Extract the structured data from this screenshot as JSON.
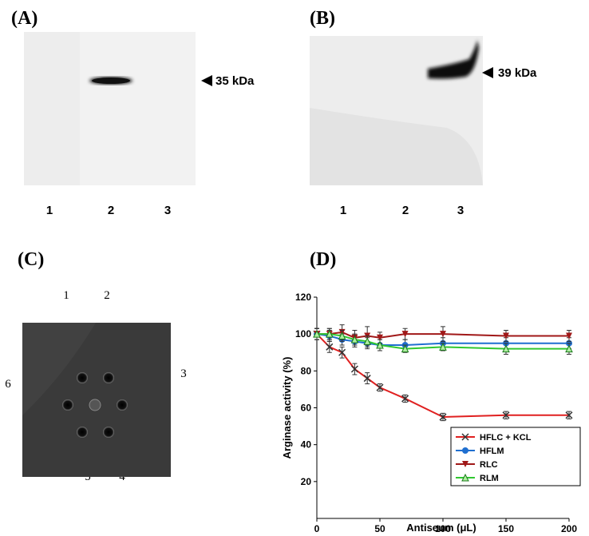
{
  "panels": {
    "a": {
      "label": "(A)",
      "marker": "35 kDa",
      "lanes": [
        "1",
        "2",
        "3"
      ]
    },
    "b": {
      "label": "(B)",
      "marker": "39 kDa",
      "lanes": [
        "1",
        "2",
        "3"
      ]
    },
    "c": {
      "label": "(C)",
      "wells": [
        "1",
        "2",
        "3",
        "4",
        "5",
        "6"
      ]
    },
    "d": {
      "label": "(D)"
    }
  },
  "chart_data": {
    "type": "line",
    "xlabel": "Antiseum (μL)",
    "ylabel": "Arginase activity (%)",
    "x": [
      0,
      10,
      20,
      30,
      40,
      50,
      70,
      100,
      150,
      200
    ],
    "xlim": [
      0,
      200
    ],
    "xticks": [
      0,
      50,
      100,
      150,
      200
    ],
    "ylim": [
      0,
      120
    ],
    "yticks": [
      20,
      40,
      60,
      80,
      100,
      120
    ],
    "legend": "lower right",
    "series": [
      {
        "name": "HFLC + KCL",
        "color": "#e02020",
        "marker": "x",
        "values": [
          100,
          93,
          90,
          81,
          76,
          71,
          65,
          55,
          56,
          56
        ],
        "errors": [
          3,
          3,
          3,
          3,
          3,
          2,
          2,
          2,
          2,
          2
        ]
      },
      {
        "name": "HFLM",
        "color": "#1f6fd0",
        "marker": "circle",
        "values": [
          100,
          99,
          97,
          96,
          95,
          94,
          94,
          95,
          95,
          95
        ],
        "errors": [
          3,
          3,
          3,
          3,
          3,
          3,
          3,
          3,
          3,
          3
        ]
      },
      {
        "name": "RLC",
        "color": "#a01818",
        "marker": "triangle-down",
        "values": [
          100,
          100,
          101,
          98,
          99,
          98,
          100,
          100,
          99,
          99
        ],
        "errors": [
          3,
          3,
          4,
          4,
          5,
          3,
          3,
          4,
          3,
          3
        ]
      },
      {
        "name": "RLM",
        "color": "#30c830",
        "marker": "triangle-up",
        "values": [
          100,
          100,
          99,
          97,
          96,
          94,
          92,
          93,
          92,
          92
        ],
        "errors": [
          3,
          3,
          3,
          3,
          3,
          3,
          2,
          2,
          3,
          3
        ]
      }
    ]
  }
}
